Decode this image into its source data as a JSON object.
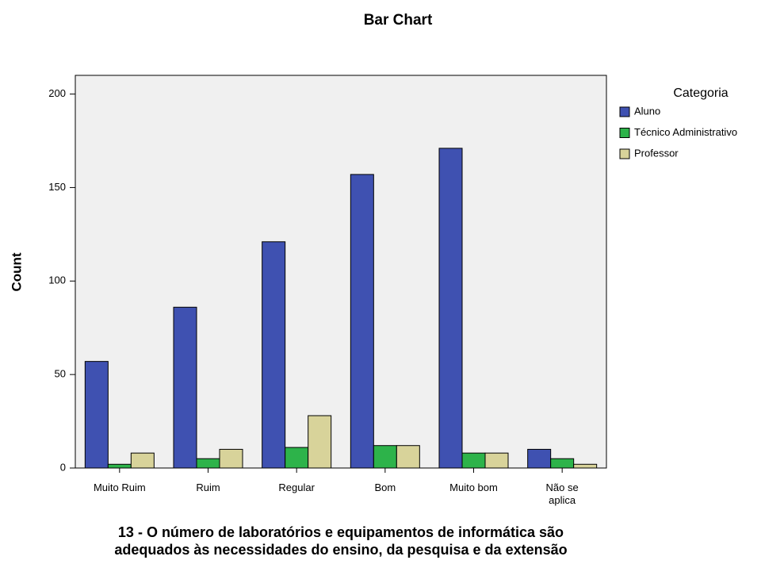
{
  "chart_data": {
    "type": "bar",
    "title": "Bar Chart",
    "x_label": "13 - O número de laboratórios e equipamentos de informática são adequados às necessidades do ensino, da pesquisa e da extensão",
    "y_label": "Count",
    "categories": [
      "Muito Ruim",
      "Ruim",
      "Regular",
      "Bom",
      "Muito bom",
      "Não se\naplica"
    ],
    "legend_title": "Categoria",
    "series": [
      {
        "name": "Aluno",
        "color": "#3f51b1",
        "values": [
          57,
          86,
          121,
          157,
          171,
          10
        ]
      },
      {
        "name": "Técnico Administrativo",
        "color": "#2db34a",
        "values": [
          2,
          5,
          11,
          12,
          8,
          5
        ]
      },
      {
        "name": "Professor",
        "color": "#d8d39a",
        "values": [
          8,
          10,
          28,
          12,
          8,
          2
        ]
      }
    ],
    "ylim": [
      0,
      210
    ],
    "yticks": [
      0,
      50,
      100,
      150,
      200
    ],
    "grid": false,
    "legend": "right"
  }
}
